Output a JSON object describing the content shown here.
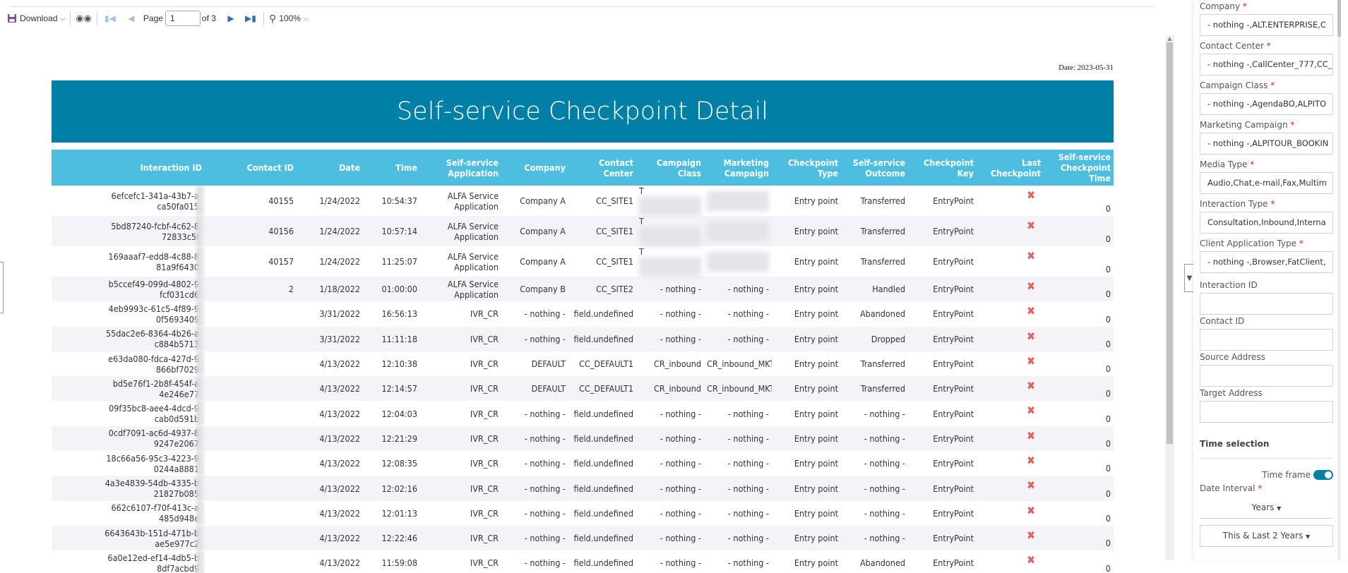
{
  "toolbar": {
    "download_label": "Download",
    "page_label": "Page",
    "page_value": "1",
    "page_of": "of 3",
    "zoom_label": "100%"
  },
  "report": {
    "date": "Date: 2023-05-31",
    "title": "Self-service Checkpoint Detail",
    "columns": [
      "Interaction ID",
      "Contact ID",
      "Date",
      "Time",
      "Self-service Application",
      "Company",
      "Contact Center",
      "Campaign Class",
      "Marketing Campaign",
      "Checkpoint Type",
      "Self-service Outcome",
      "Checkpoint Key",
      "Last Checkpoint",
      "Self-service Checkpoint Time"
    ],
    "rows": [
      {
        "iid": [
          "6efcefc1-341a-43b7-a",
          "ca50fa015"
        ],
        "contact": "40155",
        "date": "1/24/2022",
        "time": "10:54:37",
        "app": "ALFA Service Application",
        "company": "Company A",
        "cc": "CC_SITE1",
        "cclass": "T",
        "cclass_blurred": true,
        "mcamp": "",
        "mcamp_blurred": true,
        "ctype": "Entry point",
        "outcome": "Transferred",
        "key": "EntryPoint",
        "last": "x-icon",
        "sstime": "0"
      },
      {
        "iid": [
          "5bd87240-fcbf-4c62-8",
          "72833c5f"
        ],
        "contact": "40156",
        "date": "1/24/2022",
        "time": "10:57:14",
        "app": "ALFA Service Application",
        "company": "Company A",
        "cc": "CC_SITE1",
        "cclass": "T",
        "cclass_blurred": true,
        "mcamp": "",
        "mcamp_blurred": true,
        "ctype": "Entry point",
        "outcome": "Transferred",
        "key": "EntryPoint",
        "last": "x-icon",
        "sstime": "0"
      },
      {
        "iid": [
          "169aaaf7-edd8-4c88-8",
          "81a9f6430"
        ],
        "contact": "40157",
        "date": "1/24/2022",
        "time": "11:25:07",
        "app": "ALFA Service Application",
        "company": "Company A",
        "cc": "CC_SITE1",
        "cclass": "T",
        "cclass_blurred": true,
        "mcamp": "",
        "mcamp_blurred": true,
        "ctype": "Entry point",
        "outcome": "Transferred",
        "key": "EntryPoint",
        "last": "x-icon",
        "sstime": "0"
      },
      {
        "iid": [
          "b5ccef49-099d-4802-9",
          "fcf031cd6"
        ],
        "contact": "2",
        "date": "1/18/2022",
        "time": "01:00:00",
        "app": "ALFA Service Application",
        "company": "Company B",
        "cc": "CC_SITE2",
        "cclass": "- nothing -",
        "mcamp": "- nothing -",
        "ctype": "Entry point",
        "outcome": "Handled",
        "key": "EntryPoint",
        "last": "x-icon",
        "sstime": "0"
      },
      {
        "iid": [
          "4eb9993c-61c5-4f89-9",
          "0f5693409"
        ],
        "contact": "",
        "date": "3/31/2022",
        "time": "16:56:13",
        "app": "IVR_CR",
        "company": "- nothing -",
        "cc": "field.undefined",
        "cclass": "- nothing -",
        "mcamp": "- nothing -",
        "ctype": "Entry point",
        "outcome": "Abandoned",
        "key": "EntryPoint",
        "last": "x-icon",
        "sstime": "0"
      },
      {
        "iid": [
          "55dac2e6-8364-4b26-a",
          "c884b5713"
        ],
        "contact": "",
        "date": "3/31/2022",
        "time": "11:11:18",
        "app": "IVR_CR",
        "company": "- nothing -",
        "cc": "field.undefined",
        "cclass": "- nothing -",
        "mcamp": "- nothing -",
        "ctype": "Entry point",
        "outcome": "Dropped",
        "key": "EntryPoint",
        "last": "x-icon",
        "sstime": "0"
      },
      {
        "iid": [
          "e63da080-fdca-427d-9",
          "866bf7029"
        ],
        "contact": "",
        "date": "4/13/2022",
        "time": "12:10:38",
        "app": "IVR_CR",
        "company": "DEFAULT",
        "cc": "CC_DEFAULT1",
        "cclass": "CR_inbound",
        "mcamp": "CR_inbound_MKT",
        "ctype": "Entry point",
        "outcome": "Transferred",
        "key": "EntryPoint",
        "last": "x-icon",
        "sstime": "0"
      },
      {
        "iid": [
          "bd5e76f1-2b8f-454f-a",
          "4e246e77"
        ],
        "contact": "",
        "date": "4/13/2022",
        "time": "12:14:57",
        "app": "IVR_CR",
        "company": "DEFAULT",
        "cc": "CC_DEFAULT1",
        "cclass": "CR_inbound",
        "mcamp": "CR_inbound_MKT",
        "ctype": "Entry point",
        "outcome": "Transferred",
        "key": "EntryPoint",
        "last": "x-icon",
        "sstime": "0"
      },
      {
        "iid": [
          "09f35bc8-aee4-4dcd-9",
          "cab0d591b"
        ],
        "contact": "",
        "date": "4/13/2022",
        "time": "12:04:03",
        "app": "IVR_CR",
        "company": "- nothing -",
        "cc": "field.undefined",
        "cclass": "- nothing -",
        "mcamp": "- nothing -",
        "ctype": "Entry point",
        "outcome": "- nothing -",
        "key": "EntryPoint",
        "last": "x-icon",
        "sstime": "0"
      },
      {
        "iid": [
          "0cdf7091-ac6d-4937-8",
          "9247e2067"
        ],
        "contact": "",
        "date": "4/13/2022",
        "time": "12:21:29",
        "app": "IVR_CR",
        "company": "- nothing -",
        "cc": "field.undefined",
        "cclass": "- nothing -",
        "mcamp": "- nothing -",
        "ctype": "Entry point",
        "outcome": "- nothing -",
        "key": "EntryPoint",
        "last": "x-icon",
        "sstime": "0"
      },
      {
        "iid": [
          "18c66a56-95c3-4223-9",
          "0244a8881"
        ],
        "contact": "",
        "date": "4/13/2022",
        "time": "12:08:35",
        "app": "IVR_CR",
        "company": "- nothing -",
        "cc": "field.undefined",
        "cclass": "- nothing -",
        "mcamp": "- nothing -",
        "ctype": "Entry point",
        "outcome": "- nothing -",
        "key": "EntryPoint",
        "last": "x-icon",
        "sstime": "0"
      },
      {
        "iid": [
          "4a3e4839-54db-4335-b",
          "21827b085"
        ],
        "contact": "",
        "date": "4/13/2022",
        "time": "12:02:16",
        "app": "IVR_CR",
        "company": "- nothing -",
        "cc": "field.undefined",
        "cclass": "- nothing -",
        "mcamp": "- nothing -",
        "ctype": "Entry point",
        "outcome": "- nothing -",
        "key": "EntryPoint",
        "last": "x-icon",
        "sstime": "0"
      },
      {
        "iid": [
          "662c6107-f70f-413c-a",
          "485d948e"
        ],
        "contact": "",
        "date": "4/13/2022",
        "time": "12:01:13",
        "app": "IVR_CR",
        "company": "- nothing -",
        "cc": "field.undefined",
        "cclass": "- nothing -",
        "mcamp": "- nothing -",
        "ctype": "Entry point",
        "outcome": "- nothing -",
        "key": "EntryPoint",
        "last": "x-icon",
        "sstime": "0"
      },
      {
        "iid": [
          "6643643b-151d-471b-b",
          "ae5e977c2"
        ],
        "contact": "",
        "date": "4/13/2022",
        "time": "12:22:46",
        "app": "IVR_CR",
        "company": "- nothing -",
        "cc": "field.undefined",
        "cclass": "- nothing -",
        "mcamp": "- nothing -",
        "ctype": "Entry point",
        "outcome": "- nothing -",
        "key": "EntryPoint",
        "last": "x-icon",
        "sstime": "0"
      },
      {
        "iid": [
          "6a0e12ed-ef14-4db5-b",
          "8df7acbd9"
        ],
        "contact": "",
        "date": "4/13/2022",
        "time": "11:59:08",
        "app": "IVR_CR",
        "company": "- nothing -",
        "cc": "field.undefined",
        "cclass": "- nothing -",
        "mcamp": "- nothing -",
        "ctype": "Entry point",
        "outcome": "Abandoned",
        "key": "EntryPoint",
        "last": "x-icon",
        "sstime": "0"
      }
    ]
  },
  "filters": {
    "fields": [
      {
        "label": "Company",
        "required": true,
        "value": "- nothing -,ALT.ENTERPRISE,C"
      },
      {
        "label": "Contact Center",
        "required": true,
        "value": "- nothing -,CallCenter_777,CC_"
      },
      {
        "label": "Campaign Class",
        "required": true,
        "value": "- nothing -,AgendaBO,ALPITO"
      },
      {
        "label": "Marketing Campaign",
        "required": true,
        "value": "- nothing -,ALPITOUR_BOOKIN"
      },
      {
        "label": "Media Type",
        "required": true,
        "value": "Audio,Chat,e-mail,Fax,Multim"
      },
      {
        "label": "Interaction Type",
        "required": true,
        "value": "Consultation,Inbound,Interna"
      },
      {
        "label": "Client Application Type",
        "required": true,
        "value": "- nothing -,Browser,FatClient,"
      },
      {
        "label": "Interaction ID",
        "required": false,
        "value": ""
      },
      {
        "label": "Contact ID",
        "required": false,
        "value": ""
      },
      {
        "label": "Source Address",
        "required": false,
        "value": ""
      },
      {
        "label": "Target Address",
        "required": false,
        "value": ""
      }
    ],
    "time_selection": "Time selection",
    "time_frame": "Time frame",
    "time_frame_on": true,
    "date_interval": "Date Interval",
    "interval_unit": "Years",
    "interval_range": "This & Last 2 Years"
  },
  "colors": {
    "banner": "#0080a6",
    "header": "#4dbde0",
    "x_icon": "#e06363",
    "download_icon": "#7b4fa8"
  }
}
